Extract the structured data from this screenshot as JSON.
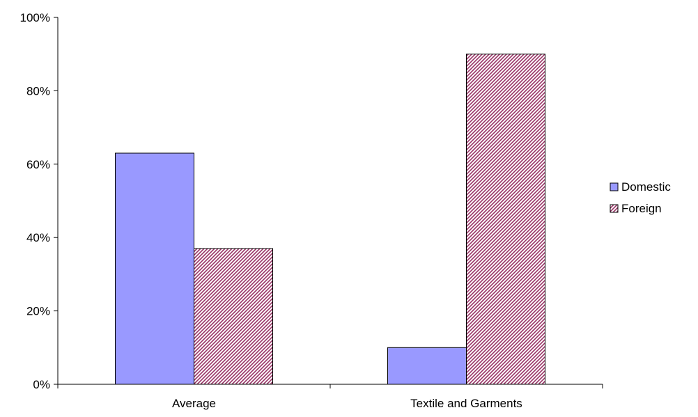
{
  "chart_data": {
    "type": "bar",
    "title": "",
    "xlabel": "",
    "ylabel": "",
    "categories": [
      "Average",
      "Textile and Garments"
    ],
    "series": [
      {
        "name": "Domestic",
        "values": [
          0.63,
          0.1
        ],
        "color": "#9999ff",
        "fill": "solid"
      },
      {
        "name": "Foreign",
        "values": [
          0.37,
          0.9
        ],
        "color": "#993366",
        "fill": "diagonal-hatch"
      }
    ],
    "ylim": [
      0,
      1
    ],
    "y_ticks": [
      0,
      0.2,
      0.4,
      0.6,
      0.8,
      1.0
    ],
    "y_tick_labels": [
      "0%",
      "20%",
      "40%",
      "60%",
      "80%",
      "100%"
    ],
    "grid": false,
    "legend_position": "right"
  }
}
